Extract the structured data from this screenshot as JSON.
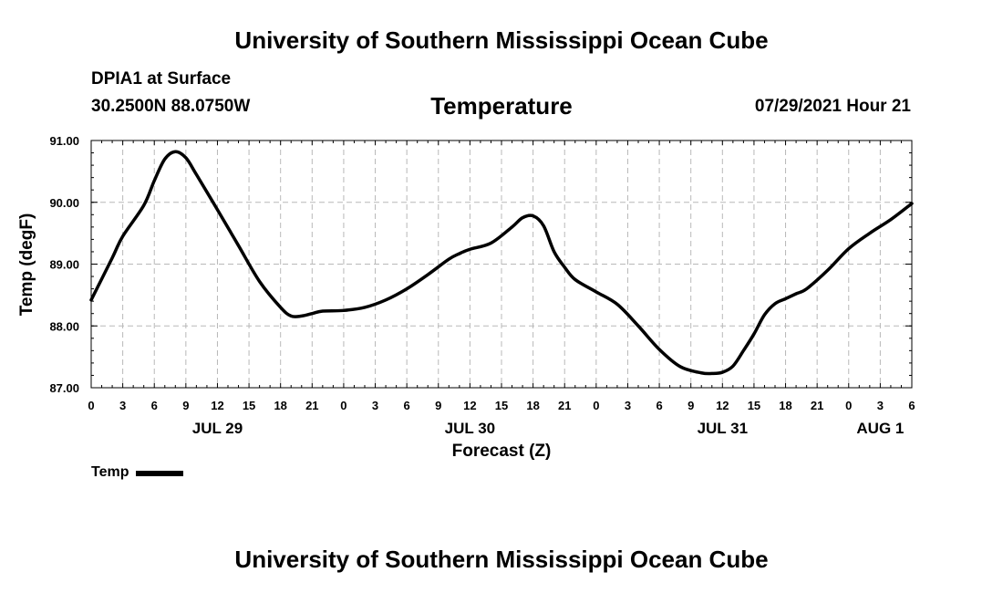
{
  "header": {
    "title": "University of Southern Mississippi Ocean Cube",
    "station": "DPIA1 at Surface",
    "coords": "30.2500N  88.0750W",
    "variable": "Temperature",
    "datetime": "07/29/2021 Hour 21"
  },
  "footer": {
    "title": "University of Southern Mississippi Ocean Cube"
  },
  "legend": {
    "label": "Temp"
  },
  "chart_data": {
    "type": "line",
    "title": "Temperature",
    "xlabel": "Forecast (Z)",
    "ylabel": "Temp (degF)",
    "x_unit": "hours since JUL 29 00Z",
    "xlim": [
      0,
      78
    ],
    "ylim": [
      87,
      91
    ],
    "grid": true,
    "y_ticks": [
      "87.00",
      "88.00",
      "89.00",
      "90.00",
      "91.00"
    ],
    "x_ticks": [
      "0",
      "3",
      "6",
      "9",
      "12",
      "15",
      "18",
      "21",
      "0",
      "3",
      "6",
      "9",
      "12",
      "15",
      "18",
      "21",
      "0",
      "3",
      "6",
      "9",
      "12",
      "15",
      "18",
      "21",
      "0",
      "3",
      "6"
    ],
    "date_labels": [
      {
        "label": "JUL 29",
        "hour": 12
      },
      {
        "label": "JUL 30",
        "hour": 36
      },
      {
        "label": "JUL 31",
        "hour": 60
      },
      {
        "label": "AUG 1",
        "hour": 75
      }
    ],
    "series": [
      {
        "name": "Temp",
        "color": "#000000",
        "x": [
          0,
          2,
          3,
          5,
          6,
          7,
          8,
          9,
          10,
          12,
          14,
          16,
          18,
          19,
          20,
          21,
          22,
          24,
          26,
          28,
          30,
          32,
          34,
          35,
          36,
          38,
          40,
          41,
          42,
          43,
          44,
          45,
          46,
          48,
          50,
          52,
          54,
          56,
          58,
          59,
          60,
          61,
          62,
          63,
          64,
          65,
          66,
          67,
          68,
          70,
          72,
          74,
          76,
          78
        ],
        "values": [
          88.42,
          89.1,
          89.45,
          89.95,
          90.35,
          90.7,
          90.82,
          90.72,
          90.45,
          89.88,
          89.3,
          88.72,
          88.3,
          88.16,
          88.16,
          88.2,
          88.24,
          88.25,
          88.3,
          88.42,
          88.6,
          88.83,
          89.08,
          89.17,
          89.24,
          89.34,
          89.6,
          89.75,
          89.78,
          89.62,
          89.2,
          88.95,
          88.75,
          88.55,
          88.35,
          88.0,
          87.62,
          87.34,
          87.24,
          87.23,
          87.25,
          87.35,
          87.6,
          87.87,
          88.18,
          88.36,
          88.44,
          88.52,
          88.6,
          88.9,
          89.25,
          89.5,
          89.72,
          89.98
        ]
      }
    ]
  }
}
